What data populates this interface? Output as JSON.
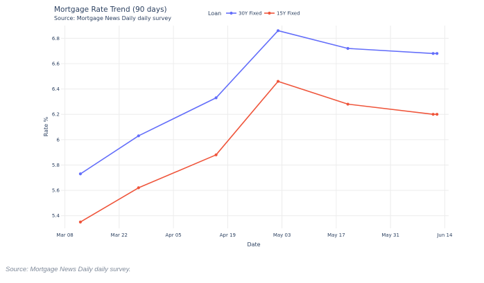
{
  "chart_data": {
    "type": "line",
    "title": "Mortgage Rate Trend (90 days)",
    "subtitle": "Source: Mortgage News Daily daily survey",
    "xlabel": "Date",
    "ylabel": "Rate %",
    "legend_title": "Loan",
    "legend_position": "top-center",
    "grid": true,
    "xlim": [
      "2024-03-07",
      "2024-06-15"
    ],
    "ylim": [
      5.3,
      6.9
    ],
    "x_ticks": [
      "2024-03-08",
      "2024-03-22",
      "2024-04-05",
      "2024-04-19",
      "2024-05-03",
      "2024-05-17",
      "2024-05-31",
      "2024-06-14"
    ],
    "x_tick_labels": [
      "Mar 08",
      "Mar 22",
      "Apr 05",
      "Apr 19",
      "May 03",
      "May 17",
      "May 31",
      "Jun 14"
    ],
    "y_ticks": [
      5.4,
      5.6,
      5.8,
      6.0,
      6.2,
      6.4,
      6.6,
      6.8
    ],
    "y_tick_labels": [
      "5.4",
      "5.6",
      "5.8",
      "6",
      "6.2",
      "6.4",
      "6.6",
      "6.8"
    ],
    "x": [
      "2024-03-12",
      "2024-03-27",
      "2024-04-16",
      "2024-05-02",
      "2024-05-20",
      "2024-06-11",
      "2024-06-12"
    ],
    "series": [
      {
        "name": "30Y Fixed",
        "color": "#636efa",
        "values": [
          5.73,
          6.03,
          6.33,
          6.86,
          6.72,
          6.68,
          6.68
        ]
      },
      {
        "name": "15Y Fixed",
        "color": "#ef553b",
        "values": [
          5.35,
          5.62,
          5.88,
          6.46,
          6.28,
          6.2,
          6.2
        ]
      }
    ]
  },
  "caption": "Source: Mortgage News Daily daily survey."
}
